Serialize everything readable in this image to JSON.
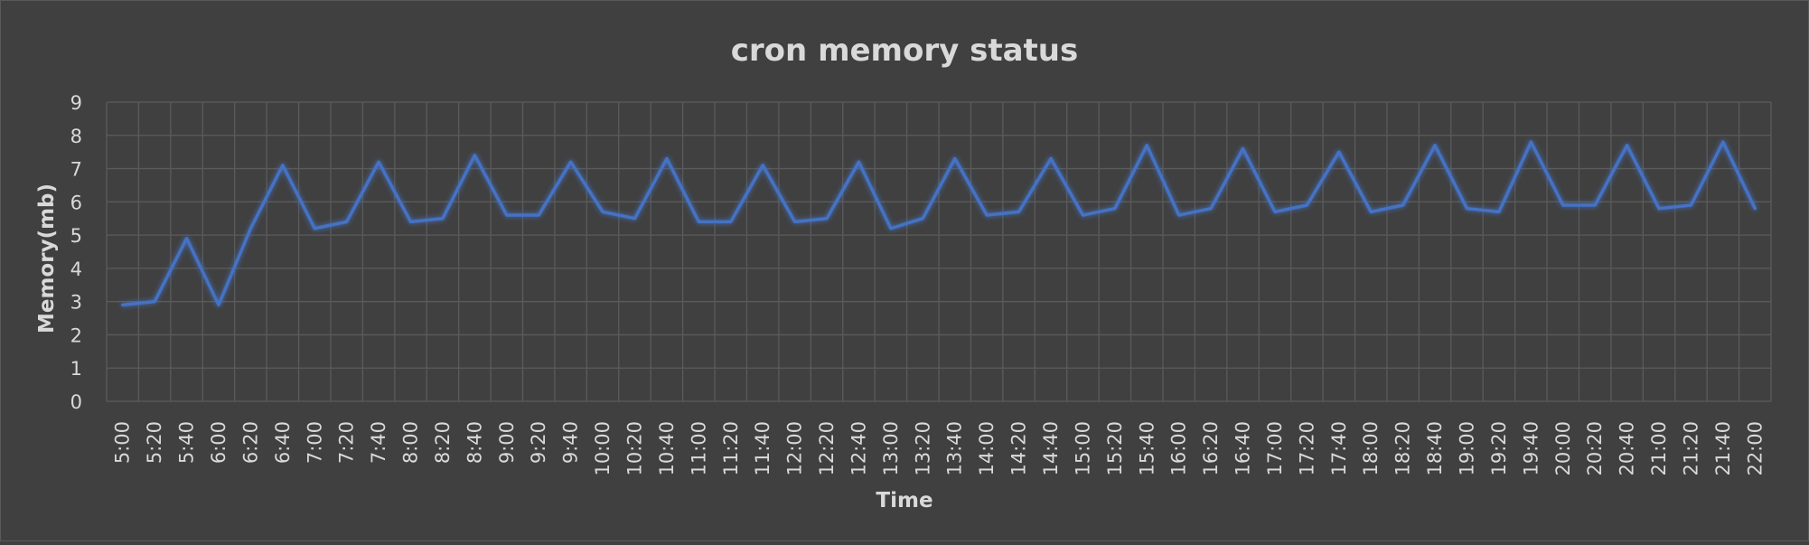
{
  "chart_data": {
    "type": "line",
    "title": "cron memory status",
    "xlabel": "Time",
    "ylabel": "Memory(mb)",
    "ylim": [
      0,
      9
    ],
    "yticks": [
      "0",
      "1",
      "2",
      "3",
      "4",
      "5",
      "6",
      "7",
      "8",
      "9"
    ],
    "grid": true,
    "legend": "none",
    "categories": [
      "5:00",
      "5:20",
      "5:40",
      "6:00",
      "6:20",
      "6:40",
      "7:00",
      "7:20",
      "7:40",
      "8:00",
      "8:20",
      "8:40",
      "9:00",
      "9:20",
      "9:40",
      "10:00",
      "10:20",
      "10:40",
      "11:00",
      "11:20",
      "11:40",
      "12:00",
      "12:20",
      "12:40",
      "13:00",
      "13:20",
      "13:40",
      "14:00",
      "14:20",
      "14:40",
      "15:00",
      "15:20",
      "15:40",
      "16:00",
      "16:20",
      "16:40",
      "17:00",
      "17:20",
      "17:40",
      "18:00",
      "18:20",
      "18:40",
      "19:00",
      "19:20",
      "19:40",
      "20:00",
      "20:20",
      "20:40",
      "21:00",
      "21:20",
      "21:40",
      "22:00"
    ],
    "series": [
      {
        "color": "#4472c4",
        "values": [
          2.9,
          3.0,
          4.9,
          2.9,
          5.2,
          7.1,
          5.2,
          5.4,
          7.2,
          5.4,
          5.5,
          7.4,
          5.6,
          5.6,
          7.2,
          5.7,
          5.5,
          7.3,
          5.4,
          5.4,
          7.1,
          5.4,
          5.5,
          7.2,
          5.2,
          5.5,
          7.3,
          5.6,
          5.7,
          7.3,
          5.6,
          5.8,
          7.7,
          5.6,
          5.8,
          7.6,
          5.7,
          5.9,
          7.5,
          5.7,
          5.9,
          7.7,
          5.8,
          5.7,
          7.8,
          5.9,
          5.9,
          7.7,
          5.8,
          5.9,
          7.8,
          5.8
        ]
      }
    ]
  }
}
